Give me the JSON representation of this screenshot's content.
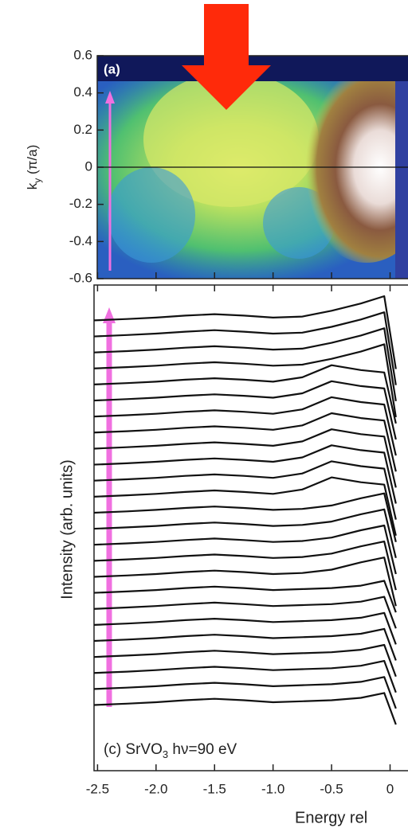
{
  "chart_data": [
    {
      "type": "image",
      "label": "(a)",
      "y_label": {
        "main": "k",
        "sub": "y",
        "rest": " (π/a)"
      },
      "ylim": [
        -0.6,
        0.6
      ],
      "yticks": [
        0.6,
        0.4,
        0.2,
        0,
        -0.2,
        -0.4,
        -0.6
      ],
      "xlim": [
        -2.53,
        0.16
      ],
      "xticks": [
        -2.5,
        -2,
        -1.5,
        -1,
        -0.5,
        0
      ]
    },
    {
      "type": "line",
      "annotation": {
        "main": "(c) SrVO",
        "sub": "3",
        "rest": "  hν=90 eV"
      },
      "y_label": "Intensity (arb. units)",
      "x_label": "Energy rel",
      "xlim": [
        -2.53,
        0.16
      ],
      "ylim": [
        0,
        100
      ],
      "color": "#111111",
      "xticks": [
        -2.5,
        {
          "value": -2,
          "label": "-2.0"
        },
        -1.5,
        {
          "value": -1,
          "label": "-1.0"
        },
        -0.5,
        0
      ],
      "x": [
        -2.55,
        -2.25,
        -2.0,
        -1.75,
        -1.5,
        -1.25,
        -1.0,
        -0.75,
        -0.5,
        -0.25,
        -0.05,
        0.05
      ],
      "series": [
        {
          "values": [
            13.5,
            13.8,
            14.1,
            14.5,
            14.8,
            14.5,
            14.1,
            14.3,
            14.5,
            15,
            16,
            9.5
          ]
        },
        {
          "values": [
            16.8,
            17.1,
            17.4,
            17.8,
            18.1,
            17.8,
            17.4,
            17.6,
            17.8,
            18.3,
            19.3,
            12.8
          ]
        },
        {
          "values": [
            20.1,
            20.4,
            20.7,
            21.1,
            21.4,
            21.1,
            20.7,
            20.9,
            21.1,
            21.6,
            22.6,
            16.1
          ]
        },
        {
          "values": [
            23.4,
            23.7,
            24,
            24.4,
            24.7,
            24.4,
            24,
            24.2,
            24.4,
            24.9,
            25.9,
            19.4
          ]
        },
        {
          "values": [
            26.7,
            27,
            27.3,
            27.7,
            28,
            27.7,
            27.3,
            27.5,
            27.7,
            28.2,
            29.2,
            22.7
          ]
        },
        {
          "values": [
            30,
            30.3,
            30.6,
            31,
            31.3,
            31,
            30.6,
            30.8,
            31,
            31.5,
            32.5,
            26
          ]
        },
        {
          "values": [
            33.3,
            33.6,
            33.9,
            34.3,
            34.6,
            34.3,
            33.9,
            34.1,
            34.3,
            34.8,
            35.8,
            29.3
          ]
        },
        {
          "values": [
            36.6,
            36.9,
            37.2,
            37.6,
            37.9,
            37.6,
            37.2,
            37.4,
            37.6,
            38.1,
            39.1,
            32.6
          ]
        },
        {
          "values": [
            39.9,
            40.2,
            40.5,
            40.9,
            41.2,
            40.9,
            40.5,
            40.7,
            41.4,
            42.9,
            43.9,
            33.9
          ]
        },
        {
          "values": [
            43.2,
            43.5,
            43.8,
            44.2,
            44.5,
            44.2,
            43.8,
            44,
            44.7,
            46.2,
            47.2,
            37.2
          ]
        },
        {
          "values": [
            46.5,
            46.8,
            47.1,
            47.5,
            47.8,
            47.5,
            47.1,
            47.3,
            48,
            49.5,
            50.5,
            40.5
          ]
        },
        {
          "values": [
            49.8,
            50.1,
            50.4,
            50.8,
            51.1,
            50.8,
            50.4,
            50.6,
            51.3,
            52.8,
            53.8,
            43.8
          ]
        },
        {
          "values": [
            53.1,
            53.4,
            53.7,
            54.1,
            54.4,
            54.1,
            53.7,
            53.9,
            54.6,
            56.1,
            57.1,
            47.1
          ]
        },
        {
          "values": [
            56.4,
            56.7,
            57,
            57.4,
            57.7,
            57.4,
            57,
            57.9,
            60.4,
            59.4,
            58.9,
            48.4
          ]
        },
        {
          "values": [
            59.7,
            60,
            60.3,
            60.7,
            61,
            60.7,
            60.3,
            61.2,
            63.7,
            62.7,
            62.2,
            51.7
          ]
        },
        {
          "values": [
            63,
            63.3,
            63.6,
            64,
            64.3,
            64,
            63.6,
            64.5,
            67,
            66,
            65.5,
            55
          ]
        },
        {
          "values": [
            66.3,
            66.6,
            66.9,
            67.3,
            67.6,
            67.3,
            66.9,
            67.8,
            70.3,
            69.3,
            68.8,
            58.3
          ]
        },
        {
          "values": [
            69.6,
            69.9,
            70.2,
            70.6,
            70.9,
            70.6,
            70.2,
            71.1,
            73.6,
            72.6,
            72.1,
            61.6
          ]
        },
        {
          "values": [
            72.9,
            73.2,
            73.5,
            73.9,
            74.2,
            73.9,
            73.5,
            74.4,
            76.9,
            75.9,
            75.4,
            64.9
          ]
        },
        {
          "values": [
            76.2,
            76.5,
            76.8,
            77.2,
            77.5,
            77.2,
            76.8,
            77.7,
            80.2,
            79.2,
            78.7,
            68.2
          ]
        },
        {
          "values": [
            79.5,
            79.8,
            80.1,
            80.5,
            80.8,
            80.5,
            80.1,
            81,
            83.5,
            82.5,
            82,
            71.5
          ]
        },
        {
          "values": [
            82.8,
            83.1,
            83.4,
            83.8,
            84.1,
            83.8,
            83.4,
            83.6,
            84.8,
            86.3,
            87.8,
            72.8
          ]
        },
        {
          "values": [
            86.1,
            86.4,
            86.7,
            87.1,
            87.4,
            87.1,
            86.7,
            86.9,
            88.1,
            89.6,
            91.1,
            76.1
          ]
        },
        {
          "values": [
            89.4,
            89.7,
            90,
            90.4,
            90.7,
            90.4,
            90,
            90.2,
            91.4,
            92.9,
            94.4,
            79.4
          ]
        },
        {
          "values": [
            92.7,
            93,
            93.3,
            93.7,
            94,
            93.7,
            93.3,
            93.5,
            94.7,
            96.2,
            97.7,
            82.7
          ]
        }
      ]
    }
  ]
}
